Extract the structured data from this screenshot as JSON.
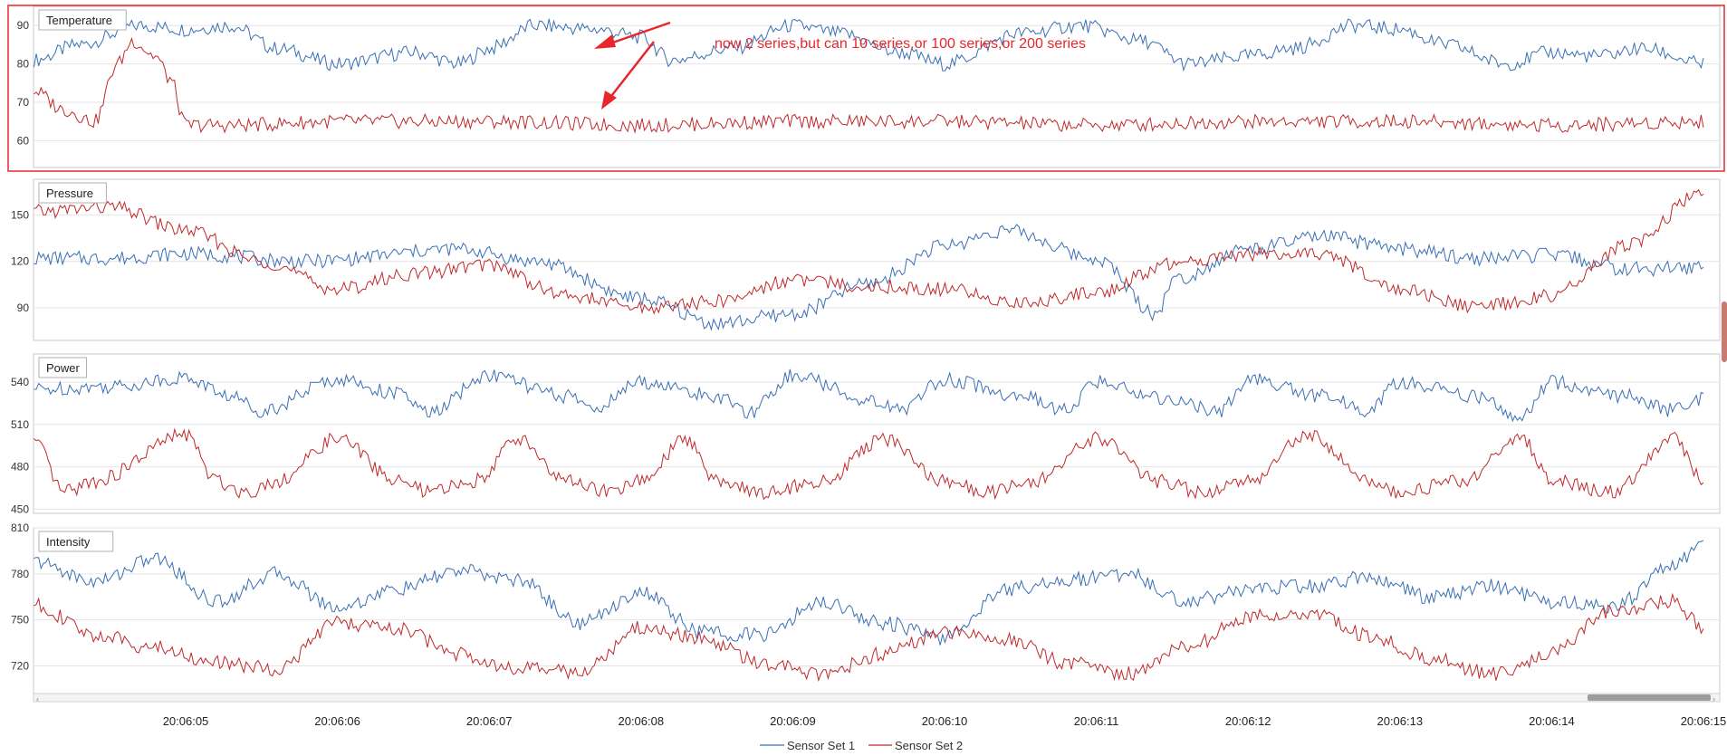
{
  "chart_data": {
    "type": "line",
    "x_ticks": [
      "20:06:05",
      "20:06:06",
      "20:06:07",
      "20:06:08",
      "20:06:09",
      "20:06:10",
      "20:06:11",
      "20:06:12",
      "20:06:13",
      "20:06:14",
      "20:06:15"
    ],
    "legend": [
      "Sensor Set 1",
      "Sensor Set 2"
    ],
    "legend_position": "bottom-center",
    "grid": true,
    "colors": {
      "series1": "#3a6fb5",
      "series2": "#c0282a",
      "highlight": "#e8262b"
    },
    "annotation": "now 2 series,but can 10 series,or 100 series,or 200 series",
    "panels": [
      {
        "title": "Temperature",
        "ylim": [
          53,
          95
        ],
        "yticks": [
          60,
          70,
          80,
          90
        ],
        "series": [
          {
            "name": "Sensor Set 1",
            "x": [
              0.0,
              0.3,
              0.7,
              1.0,
              1.3,
              1.6,
              2.0,
              2.5,
              2.8,
              3.0,
              3.3,
              3.7,
              4.0,
              4.2,
              4.6,
              5.0,
              5.3,
              5.7,
              6.0,
              6.5,
              6.9,
              7.3,
              7.6,
              8.0,
              8.3,
              8.7,
              9.0,
              9.3,
              9.7,
              10.0,
              10.3,
              10.6,
              11.0
            ],
            "y": [
              81,
              85,
              90,
              89,
              90,
              84,
              80,
              83,
              80,
              84,
              90,
              89,
              87,
              81,
              84,
              90,
              88,
              83,
              80,
              88,
              90,
              86,
              80,
              82,
              84,
              90,
              89,
              85,
              80,
              83,
              82,
              84,
              80
            ]
          },
          {
            "name": "Sensor Set 2",
            "x": [
              0.0,
              0.2,
              0.4,
              0.55,
              0.65,
              0.8,
              0.9,
              1.0,
              1.3,
              2.0,
              3.0,
              4.0,
              5.0,
              6.0,
              7.0,
              8.0,
              9.0,
              10.0,
              11.0
            ],
            "y": [
              73,
              68,
              65,
              80,
              86,
              82,
              76,
              64,
              64,
              65,
              65,
              64,
              65,
              65,
              64,
              65,
              65,
              64,
              65
            ]
          }
        ]
      },
      {
        "title": "Pressure",
        "ylim": [
          69,
          173
        ],
        "yticks": [
          90,
          120,
          150
        ],
        "series": [
          {
            "name": "Sensor Set 1",
            "x": [
              0.0,
              0.5,
              1.0,
              1.8,
              2.8,
              3.3,
              4.0,
              4.5,
              5.0,
              5.5,
              6.0,
              6.4,
              7.0,
              7.4,
              7.5,
              8.0,
              8.5,
              9.0,
              9.5,
              10.0,
              10.5,
              11.0
            ],
            "y": [
              122,
              122,
              125,
              120,
              128,
              120,
              96,
              80,
              86,
              106,
              130,
              140,
              122,
              86,
              108,
              128,
              136,
              128,
              122,
              124,
              115,
              116
            ]
          },
          {
            "name": "Sensor Set 2",
            "x": [
              0.0,
              0.5,
              1.0,
              1.5,
              2.0,
              2.5,
              3.0,
              3.5,
              4.0,
              4.5,
              5.0,
              5.5,
              6.0,
              6.5,
              7.0,
              7.5,
              8.0,
              8.5,
              9.0,
              9.5,
              10.0,
              10.5,
              11.0
            ],
            "y": [
              152,
              155,
              140,
              120,
              102,
              112,
              118,
              98,
              90,
              94,
              108,
              104,
              102,
              93,
              100,
              118,
              125,
              124,
              102,
              90,
              98,
              130,
              164
            ]
          }
        ]
      },
      {
        "title": "Power",
        "ylim": [
          447,
          560
        ],
        "yticks": [
          450,
          480,
          510,
          540
        ],
        "series": [
          {
            "name": "Sensor Set 1",
            "x": [
              0.0,
              0.5,
              1.0,
              1.3,
              1.5,
              2.0,
              2.4,
              2.6,
              3.0,
              3.5,
              3.7,
              4.0,
              4.5,
              4.7,
              5.0,
              5.5,
              5.7,
              6.0,
              6.5,
              6.8,
              7.0,
              7.5,
              7.8,
              8.0,
              8.5,
              8.8,
              9.0,
              9.5,
              9.8,
              10.0,
              10.5,
              10.8,
              11.0
            ],
            "y": [
              535,
              537,
              543,
              530,
              520,
              542,
              532,
              518,
              545,
              530,
              522,
              540,
              530,
              518,
              545,
              528,
              520,
              542,
              530,
              520,
              540,
              528,
              518,
              542,
              530,
              520,
              540,
              530,
              515,
              540,
              530,
              520,
              528
            ]
          },
          {
            "name": "Sensor Set 2",
            "x": [
              0.0,
              0.2,
              0.4,
              1.0,
              1.2,
              1.4,
              1.6,
              2.0,
              2.4,
              2.6,
              2.9,
              3.2,
              3.5,
              3.8,
              4.0,
              4.3,
              4.5,
              4.8,
              5.2,
              5.6,
              6.0,
              6.3,
              6.6,
              7.0,
              7.4,
              7.7,
              8.0,
              8.4,
              8.8,
              9.0,
              9.4,
              9.8,
              10.0,
              10.4,
              10.8,
              11.0
            ],
            "y": [
              498,
              462,
              470,
              503,
              470,
              462,
              470,
              500,
              470,
              462,
              470,
              500,
              470,
              462,
              470,
              500,
              470,
              462,
              470,
              500,
              470,
              462,
              470,
              500,
              470,
              462,
              470,
              503,
              470,
              462,
              470,
              500,
              470,
              462,
              500,
              470
            ]
          }
        ]
      },
      {
        "title": "Intensity",
        "ylim": [
          702,
          810
        ],
        "yticks": [
          720,
          750,
          780,
          810
        ],
        "series": [
          {
            "name": "Sensor Set 1",
            "x": [
              0.0,
              0.4,
              0.8,
              1.2,
              1.6,
              2.0,
              2.4,
              2.8,
              3.2,
              3.6,
              4.0,
              4.4,
              4.8,
              5.2,
              5.6,
              6.0,
              6.4,
              6.8,
              7.2,
              7.6,
              8.0,
              8.4,
              8.8,
              9.2,
              9.6,
              10.0,
              10.4,
              10.8,
              11.0
            ],
            "y": [
              788,
              775,
              790,
              762,
              780,
              758,
              770,
              782,
              776,
              748,
              768,
              742,
              740,
              762,
              748,
              738,
              770,
              776,
              780,
              762,
              770,
              772,
              778,
              765,
              772,
              762,
              758,
              786,
              800
            ]
          },
          {
            "name": "Sensor Set 2",
            "x": [
              0.0,
              0.4,
              0.8,
              1.2,
              1.6,
              2.0,
              2.4,
              2.8,
              3.2,
              3.6,
              4.0,
              4.4,
              4.8,
              5.2,
              5.6,
              6.0,
              6.4,
              6.8,
              7.2,
              7.6,
              8.0,
              8.4,
              8.8,
              9.2,
              9.6,
              10.0,
              10.4,
              10.8,
              11.0
            ],
            "y": [
              760,
              740,
              732,
              722,
              718,
              748,
              744,
              728,
              718,
              716,
              745,
              738,
              722,
              715,
              728,
              742,
              738,
              722,
              715,
              732,
              752,
              754,
              740,
              725,
              715,
              728,
              756,
              762,
              745
            ]
          }
        ]
      }
    ]
  }
}
